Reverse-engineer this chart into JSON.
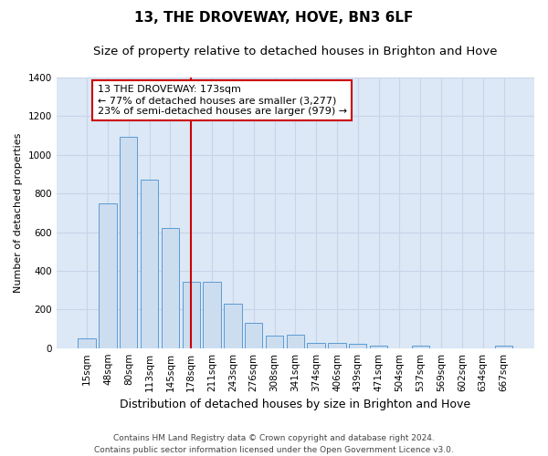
{
  "title": "13, THE DROVEWAY, HOVE, BN3 6LF",
  "subtitle": "Size of property relative to detached houses in Brighton and Hove",
  "xlabel": "Distribution of detached houses by size in Brighton and Hove",
  "ylabel": "Number of detached properties",
  "footer_line1": "Contains HM Land Registry data © Crown copyright and database right 2024.",
  "footer_line2": "Contains public sector information licensed under the Open Government Licence v3.0.",
  "categories": [
    "15sqm",
    "48sqm",
    "80sqm",
    "113sqm",
    "145sqm",
    "178sqm",
    "211sqm",
    "243sqm",
    "276sqm",
    "308sqm",
    "341sqm",
    "374sqm",
    "406sqm",
    "439sqm",
    "471sqm",
    "504sqm",
    "537sqm",
    "569sqm",
    "602sqm",
    "634sqm",
    "667sqm"
  ],
  "values": [
    50,
    750,
    1095,
    870,
    620,
    345,
    345,
    228,
    130,
    65,
    70,
    28,
    28,
    20,
    13,
    0,
    13,
    0,
    0,
    0,
    13
  ],
  "bar_color": "#ccddf0",
  "bar_edge_color": "#5b9bd5",
  "vline_x": 5,
  "vline_color": "#cc0000",
  "annotation_text": "13 THE DROVEWAY: 173sqm\n← 77% of detached houses are smaller (3,277)\n23% of semi-detached houses are larger (979) →",
  "annotation_box_color": "white",
  "annotation_box_edge_color": "#cc0000",
  "ylim": [
    0,
    1400
  ],
  "yticks": [
    0,
    200,
    400,
    600,
    800,
    1000,
    1200,
    1400
  ],
  "grid_color": "#c8d4e8",
  "background_color": "#dce8f5",
  "title_fontsize": 11,
  "subtitle_fontsize": 9.5,
  "xlabel_fontsize": 9,
  "ylabel_fontsize": 8,
  "tick_fontsize": 7.5,
  "annotation_fontsize": 8,
  "footer_fontsize": 6.5
}
